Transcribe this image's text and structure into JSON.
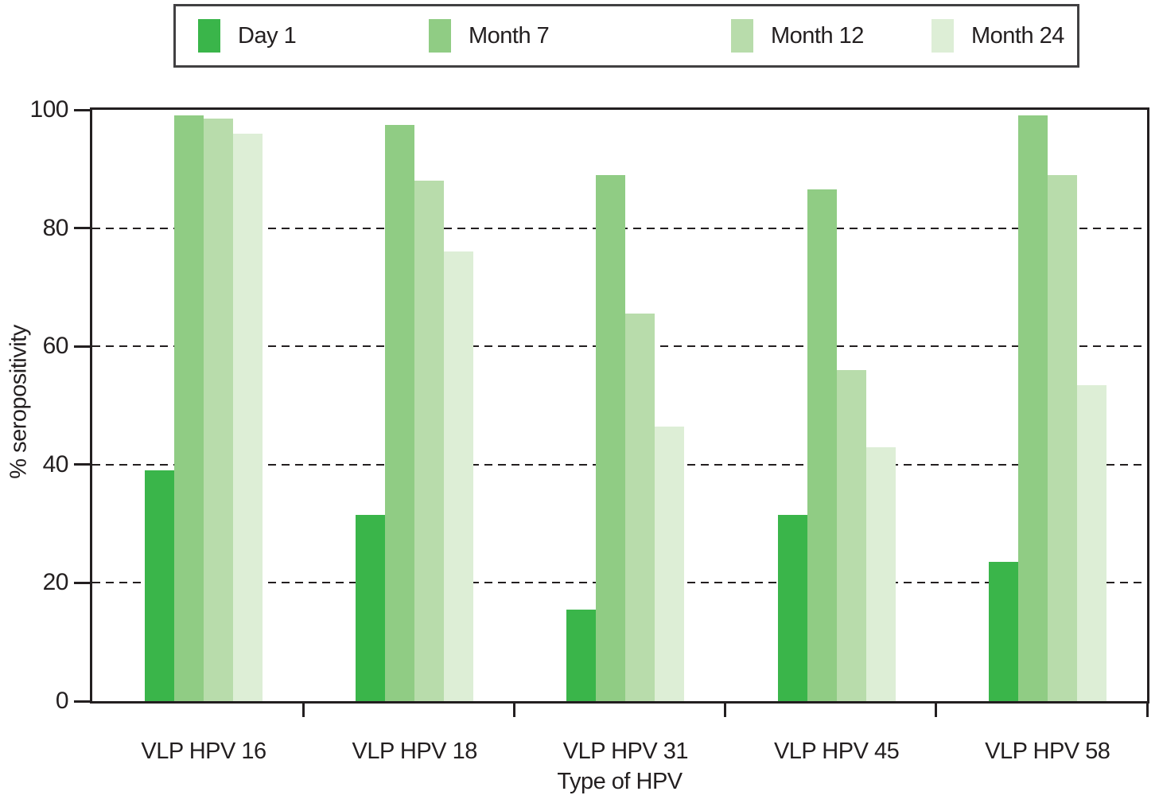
{
  "chart_data": {
    "type": "bar",
    "title": "",
    "xlabel": "Type of HPV",
    "ylabel": "% seropositivity",
    "ylim": [
      0,
      100
    ],
    "yticks": [
      0,
      20,
      40,
      60,
      80,
      100
    ],
    "grid": "horizontal dashed gridlines at 20, 40, 60, 80",
    "legend_position": "top, boxed, horizontal",
    "categories": [
      "VLP HPV 16",
      "VLP HPV 18",
      "VLP HPV 31",
      "VLP HPV 45",
      "VLP HPV 58"
    ],
    "series": [
      {
        "name": "Day 1",
        "color": "#3ab54a",
        "values": [
          39,
          31.5,
          15.5,
          31.5,
          23.5
        ]
      },
      {
        "name": "Month 7",
        "color": "#90cc84",
        "values": [
          99,
          97.5,
          89,
          86.5,
          99
        ]
      },
      {
        "name": "Month 12",
        "color": "#b8dcab",
        "values": [
          98.5,
          88,
          65.5,
          56,
          89
        ]
      },
      {
        "name": "Month 24",
        "color": "#ddeed6",
        "values": [
          96,
          76,
          46.5,
          43,
          53.5
        ]
      }
    ]
  },
  "colors": {
    "axis": "#231f20",
    "legend_border": "#414042",
    "background": "#ffffff"
  }
}
